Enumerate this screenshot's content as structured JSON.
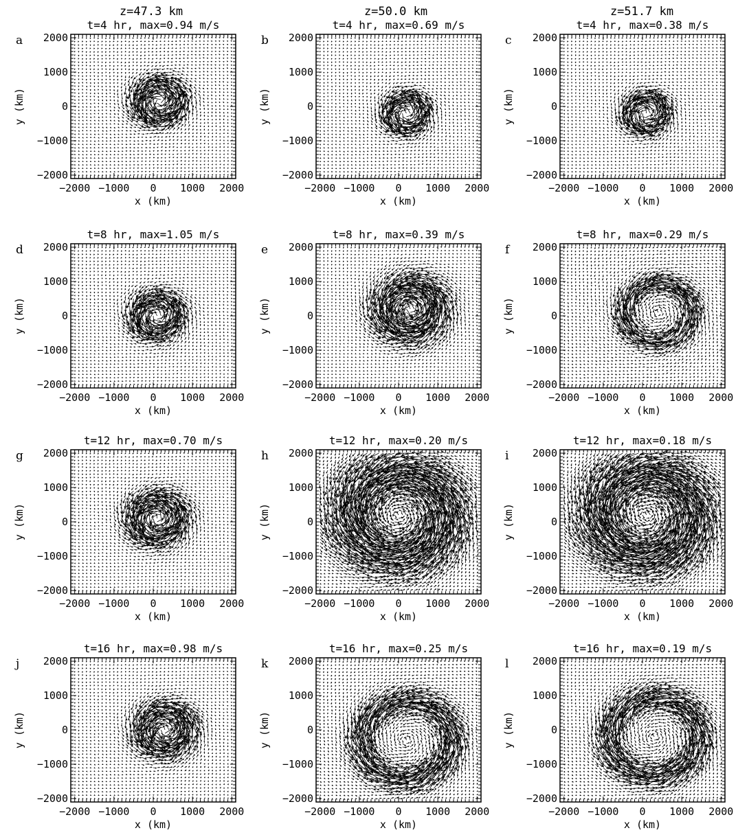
{
  "figure": {
    "column_headers": [
      "z=47.3 km",
      "z=50.0 km",
      "z=51.7 km"
    ]
  },
  "chart_data": [
    {
      "type": "quiver",
      "panel": "a",
      "title": "t=4 hr, max=0.94 m/s",
      "time_hr": 4,
      "z_km": 47.3,
      "max_speed_mps": 0.94,
      "xlabel": "x (km)",
      "ylabel": "y (km)",
      "xlim": [
        -2100,
        2100
      ],
      "ylim": [
        -2100,
        2100
      ],
      "xticks": [
        "−2000",
        "−1000",
        "0",
        "1000",
        "2000"
      ],
      "yticks": [
        "2000",
        "1000",
        "0",
        "−1000",
        "−2000"
      ],
      "structure": "compact",
      "center": [
        150,
        150
      ],
      "radius": 800,
      "rotation": "counterclockwise"
    },
    {
      "type": "quiver",
      "panel": "b",
      "title": "t=4 hr, max=0.69 m/s",
      "time_hr": 4,
      "z_km": 50.0,
      "max_speed_mps": 0.69,
      "xlabel": "x (km)",
      "ylabel": "y (km)",
      "xlim": [
        -2100,
        2100
      ],
      "ylim": [
        -2100,
        2100
      ],
      "xticks": [
        "−2000",
        "−1000",
        "0",
        "1000",
        "2000"
      ],
      "yticks": [
        "2000",
        "1000",
        "0",
        "−1000",
        "−2000"
      ],
      "structure": "compact",
      "center": [
        200,
        -200
      ],
      "radius": 700,
      "rotation": "counterclockwise"
    },
    {
      "type": "quiver",
      "panel": "c",
      "title": "t=4 hr, max=0.38 m/s",
      "time_hr": 4,
      "z_km": 51.7,
      "max_speed_mps": 0.38,
      "xlabel": "x (km)",
      "ylabel": "y (km)",
      "xlim": [
        -2100,
        2100
      ],
      "ylim": [
        -2100,
        2100
      ],
      "xticks": [
        "−2000",
        "−1000",
        "0",
        "1000",
        "2000"
      ],
      "yticks": [
        "2000",
        "1000",
        "0",
        "−1000",
        "−2000"
      ],
      "structure": "compact",
      "center": [
        100,
        -200
      ],
      "radius": 700,
      "rotation": "counterclockwise"
    },
    {
      "type": "quiver",
      "panel": "d",
      "title": "t=8 hr, max=1.05 m/s",
      "time_hr": 8,
      "z_km": 47.3,
      "max_speed_mps": 1.05,
      "xlabel": "x (km)",
      "ylabel": "y (km)",
      "xlim": [
        -2100,
        2100
      ],
      "ylim": [
        -2100,
        2100
      ],
      "xticks": [
        "−2000",
        "−1000",
        "0",
        "1000",
        "2000"
      ],
      "yticks": [
        "2000",
        "1000",
        "0",
        "−1000",
        "−2000"
      ],
      "structure": "compact",
      "center": [
        100,
        0
      ],
      "radius": 800,
      "rotation": "counterclockwise"
    },
    {
      "type": "quiver",
      "panel": "e",
      "title": "t=8 hr, max=0.39 m/s",
      "time_hr": 8,
      "z_km": 50.0,
      "max_speed_mps": 0.39,
      "xlabel": "x (km)",
      "ylabel": "y (km)",
      "xlim": [
        -2100,
        2100
      ],
      "ylim": [
        -2100,
        2100
      ],
      "xticks": [
        "−2000",
        "−1000",
        "0",
        "1000",
        "2000"
      ],
      "yticks": [
        "2000",
        "1000",
        "0",
        "−1000",
        "−2000"
      ],
      "structure": "compact",
      "center": [
        300,
        200
      ],
      "radius": 1100,
      "rotation": "counterclockwise"
    },
    {
      "type": "quiver",
      "panel": "f",
      "title": "t=8 hr, max=0.29 m/s",
      "time_hr": 8,
      "z_km": 51.7,
      "max_speed_mps": 0.29,
      "xlabel": "x (km)",
      "ylabel": "y (km)",
      "xlim": [
        -2100,
        2100
      ],
      "ylim": [
        -2100,
        2100
      ],
      "xticks": [
        "−2000",
        "−1000",
        "0",
        "1000",
        "2000"
      ],
      "yticks": [
        "2000",
        "1000",
        "0",
        "−1000",
        "−2000"
      ],
      "structure": "ring",
      "center": [
        400,
        100
      ],
      "radius": 900,
      "rotation": "counterclockwise"
    },
    {
      "type": "quiver",
      "panel": "g",
      "title": "t=12 hr, max=0.70 m/s",
      "time_hr": 12,
      "z_km": 47.3,
      "max_speed_mps": 0.7,
      "xlabel": "x (km)",
      "ylabel": "y (km)",
      "xlim": [
        -2100,
        2100
      ],
      "ylim": [
        -2100,
        2100
      ],
      "xticks": [
        "−2000",
        "−1000",
        "0",
        "1000",
        "2000"
      ],
      "yticks": [
        "2000",
        "1000",
        "0",
        "−1000",
        "−2000"
      ],
      "structure": "compact",
      "center": [
        100,
        100
      ],
      "radius": 900,
      "rotation": "counterclockwise"
    },
    {
      "type": "quiver",
      "panel": "h",
      "title": "t=12 hr, max=0.20 m/s",
      "time_hr": 12,
      "z_km": 50.0,
      "max_speed_mps": 0.2,
      "xlabel": "x (km)",
      "ylabel": "y (km)",
      "xlim": [
        -2100,
        2100
      ],
      "ylim": [
        -2100,
        2100
      ],
      "xticks": [
        "−2000",
        "−1000",
        "0",
        "1000",
        "2000"
      ],
      "yticks": [
        "2000",
        "1000",
        "0",
        "−1000",
        "−2000"
      ],
      "structure": "spiral",
      "center": [
        0,
        200
      ],
      "radius": 1400,
      "rotation": "counterclockwise"
    },
    {
      "type": "quiver",
      "panel": "i",
      "title": "t=12 hr, max=0.18 m/s",
      "time_hr": 12,
      "z_km": 51.7,
      "max_speed_mps": 0.18,
      "xlabel": "x (km)",
      "ylabel": "y (km)",
      "xlim": [
        -2100,
        2100
      ],
      "ylim": [
        -2100,
        2100
      ],
      "xticks": [
        "−2000",
        "−1000",
        "0",
        "1000",
        "2000"
      ],
      "yticks": [
        "2000",
        "1000",
        "0",
        "−1000",
        "−2000"
      ],
      "structure": "spiral",
      "center": [
        100,
        200
      ],
      "radius": 1400,
      "rotation": "counterclockwise"
    },
    {
      "type": "quiver",
      "panel": "j",
      "title": "t=16 hr, max=0.98 m/s",
      "time_hr": 16,
      "z_km": 47.3,
      "max_speed_mps": 0.98,
      "xlabel": "x (km)",
      "ylabel": "y (km)",
      "xlim": [
        -2100,
        2100
      ],
      "ylim": [
        -2100,
        2100
      ],
      "xticks": [
        "−2000",
        "−1000",
        "0",
        "1000",
        "2000"
      ],
      "yticks": [
        "2000",
        "1000",
        "0",
        "−1000",
        "−2000"
      ],
      "structure": "compact",
      "center": [
        300,
        0
      ],
      "radius": 900,
      "rotation": "counterclockwise"
    },
    {
      "type": "quiver",
      "panel": "k",
      "title": "t=16 hr, max=0.25 m/s",
      "time_hr": 16,
      "z_km": 50.0,
      "max_speed_mps": 0.25,
      "xlabel": "x (km)",
      "ylabel": "y (km)",
      "xlim": [
        -2100,
        2100
      ],
      "ylim": [
        -2100,
        2100
      ],
      "xticks": [
        "−2000",
        "−1000",
        "0",
        "1000",
        "2000"
      ],
      "yticks": [
        "2000",
        "1000",
        "0",
        "−1000",
        "−2000"
      ],
      "structure": "ring",
      "center": [
        200,
        -300
      ],
      "radius": 1200,
      "rotation": "counterclockwise"
    },
    {
      "type": "quiver",
      "panel": "l",
      "title": "t=16 hr, max=0.19 m/s",
      "time_hr": 16,
      "z_km": 51.7,
      "max_speed_mps": 0.19,
      "xlabel": "x (km)",
      "ylabel": "y (km)",
      "xlim": [
        -2100,
        2100
      ],
      "ylim": [
        -2100,
        2100
      ],
      "xticks": [
        "−2000",
        "−1000",
        "0",
        "1000",
        "2000"
      ],
      "yticks": [
        "2000",
        "1000",
        "0",
        "−1000",
        "−2000"
      ],
      "structure": "ring",
      "center": [
        300,
        -200
      ],
      "radius": 1200,
      "rotation": "counterclockwise"
    }
  ]
}
